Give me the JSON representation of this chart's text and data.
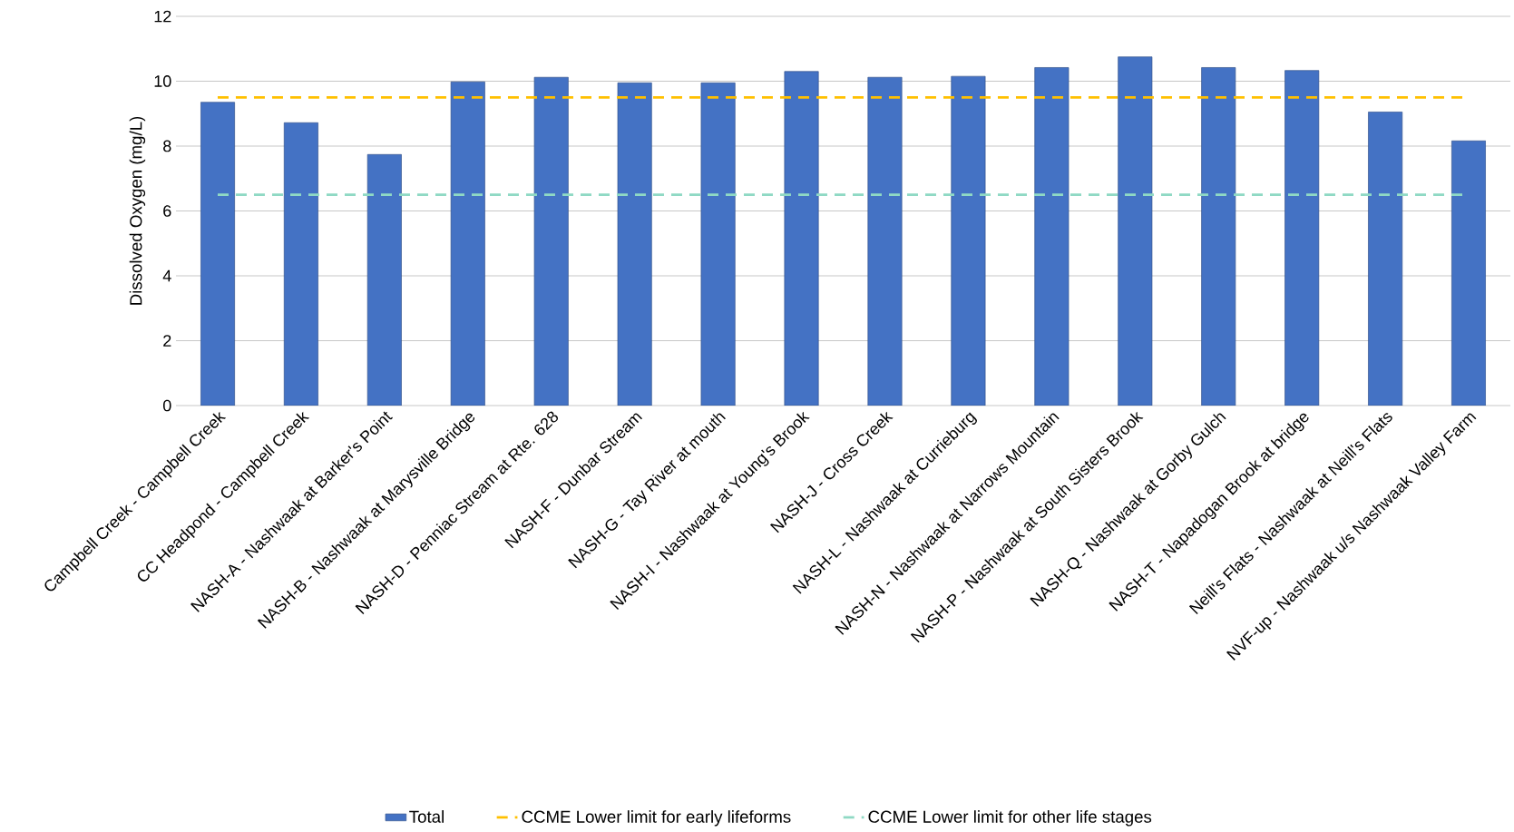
{
  "chart_data": {
    "type": "bar",
    "ylabel": "Dissolved Oxygen (mg/L)",
    "categories": [
      "Campbell Creek - Campbell Creek",
      "CC Headpond  - Campbell Creek",
      "NASH-A - Nashwaak at Barker's Point",
      "NASH-B - Nashwaak at Marysville Bridge",
      "NASH-D - Penniac Stream at Rte. 628",
      "NASH-F - Dunbar Stream",
      "NASH-G - Tay River at mouth",
      "NASH-I - Nashwaak at Young's Brook",
      "NASH-J - Cross Creek",
      "NASH-L - Nashwaak at Currieburg",
      "NASH-N - Nashwaak at Narrows Mountain",
      "NASH-P - Nashwaak at South Sisters Brook",
      "NASH-Q - Nashwaak at Gorby Gulch",
      "NASH-T - Napadogan Brook at bridge",
      "Neill's Flats - Nashwaak at Neill's Flats",
      "NVF-up - Nashwaak u/s Nashwaak Valley Farm"
    ],
    "series": [
      {
        "name": "Total",
        "color": "#4472c4",
        "values": [
          9.35,
          8.72,
          7.74,
          9.98,
          10.12,
          9.95,
          9.95,
          10.3,
          10.12,
          10.15,
          10.42,
          10.75,
          10.42,
          10.33,
          9.05,
          8.16
        ]
      }
    ],
    "ref_lines": [
      {
        "axis": "y",
        "value": 9.5,
        "label": "CCME Lower limit for early lifeforms",
        "color": "#ffc000",
        "line_style": "dashed"
      },
      {
        "axis": "y",
        "value": 6.5,
        "label": "CCME Lower limit for other life stages",
        "color": "#8fd9c4",
        "line_style": "dashed"
      }
    ],
    "ylim": [
      0,
      12
    ],
    "yticks": [
      0,
      2,
      4,
      6,
      8,
      10,
      12
    ],
    "grid": "y",
    "legend": "bottom"
  }
}
